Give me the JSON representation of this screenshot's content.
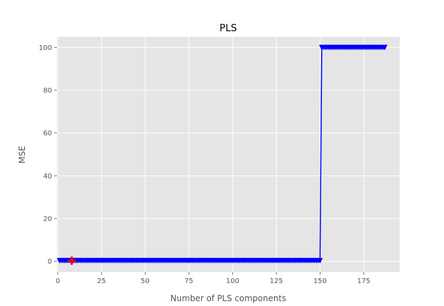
{
  "chart_data": {
    "type": "line",
    "title": "PLS",
    "xlabel": "Number of PLS components",
    "ylabel": "MSE",
    "xlim": [
      -0.5,
      195.5
    ],
    "ylim": [
      -5,
      105
    ],
    "x_ticks": [
      0,
      25,
      50,
      75,
      100,
      125,
      150,
      175
    ],
    "y_ticks": [
      0,
      20,
      40,
      60,
      80,
      100
    ],
    "grid": true,
    "legend": "none",
    "series": [
      {
        "color": "#0000ff",
        "marker": "triangle-down",
        "segments": [
          {
            "x_start": 1,
            "x_end": 150,
            "y": 0.3
          },
          {
            "x_start": 151,
            "x_end": 187,
            "y": 100
          }
        ]
      }
    ],
    "highlight_point": {
      "x": 8,
      "y": 0.3,
      "marker": "plus",
      "color": "#ff0000"
    },
    "colors": {
      "background": "#e5e5e5",
      "grid": "#ffffff",
      "line": "#0000ff",
      "highlight": "#ff0000"
    }
  }
}
